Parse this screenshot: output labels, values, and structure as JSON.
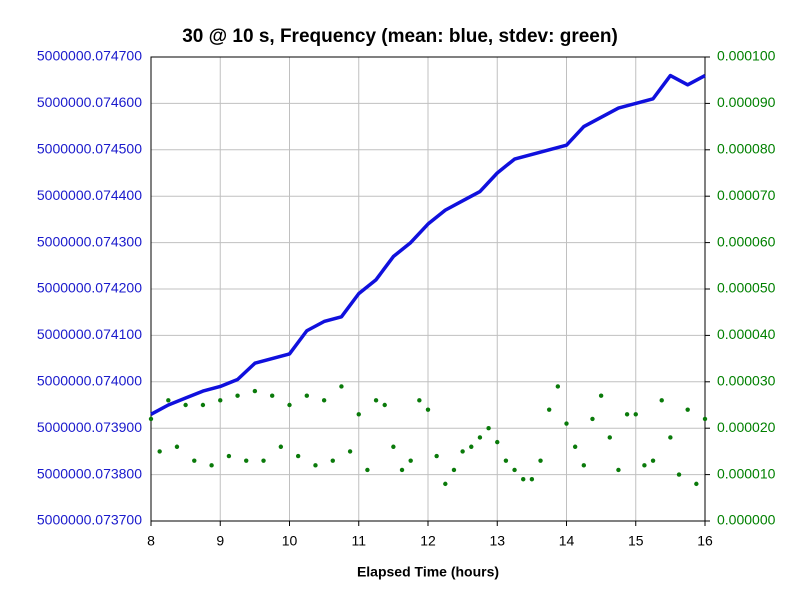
{
  "chart_data": {
    "type": "line",
    "title": "30 @ 10 s, Frequency (mean: blue, stdev: green)",
    "x_label": "Elapsed Time (hours)",
    "xlim": [
      8,
      16
    ],
    "xticks": [
      8,
      9,
      10,
      11,
      12,
      13,
      14,
      15,
      16
    ],
    "ylim": [
      5000000.0737,
      5000000.0747
    ],
    "yticks": [
      {
        "value": 5000000.0737,
        "label": "5000000.073700"
      },
      {
        "value": 5000000.0738,
        "label": "5000000.073800"
      },
      {
        "value": 5000000.0739,
        "label": "5000000.073900"
      },
      {
        "value": 5000000.074,
        "label": "5000000.074000"
      },
      {
        "value": 5000000.0741,
        "label": "5000000.074100"
      },
      {
        "value": 5000000.0742,
        "label": "5000000.074200"
      },
      {
        "value": 5000000.0743,
        "label": "5000000.074300"
      },
      {
        "value": 5000000.0744,
        "label": "5000000.074400"
      },
      {
        "value": 5000000.0745,
        "label": "5000000.074500"
      },
      {
        "value": 5000000.0746,
        "label": "5000000.074600"
      },
      {
        "value": 5000000.0747,
        "label": "5000000.074700"
      }
    ],
    "y2lim": [
      0,
      0.0001
    ],
    "y2ticks": [
      {
        "value": 0,
        "label": "0.000000"
      },
      {
        "value": 1e-05,
        "label": "0.000010"
      },
      {
        "value": 2e-05,
        "label": "0.000020"
      },
      {
        "value": 3e-05,
        "label": "0.000030"
      },
      {
        "value": 4e-05,
        "label": "0.000040"
      },
      {
        "value": 5e-05,
        "label": "0.000050"
      },
      {
        "value": 6e-05,
        "label": "0.000060"
      },
      {
        "value": 7e-05,
        "label": "0.000070"
      },
      {
        "value": 8e-05,
        "label": "0.000080"
      },
      {
        "value": 9e-05,
        "label": "0.000090"
      },
      {
        "value": 0.0001,
        "label": "0.000100"
      }
    ],
    "grid": true,
    "y_color": "#1a1acc",
    "y2_color": "#008000",
    "series": [
      {
        "color": "#1010dd",
        "style": "line",
        "x": [
          8,
          8.25,
          8.5,
          8.75,
          9,
          9.25,
          9.5,
          9.75,
          10,
          10.25,
          10.5,
          10.75,
          11,
          11.25,
          11.5,
          11.75,
          12,
          12.25,
          12.5,
          12.75,
          13,
          13.25,
          13.5,
          13.75,
          14,
          14.25,
          14.5,
          14.75,
          15,
          15.25,
          15.5,
          15.75,
          16
        ],
        "values": [
          5000000.07393,
          5000000.07395,
          5000000.073965,
          5000000.07398,
          5000000.07399,
          5000000.074005,
          5000000.07404,
          5000000.07405,
          5000000.07406,
          5000000.07411,
          5000000.07413,
          5000000.07414,
          5000000.07419,
          5000000.07422,
          5000000.07427,
          5000000.0743,
          5000000.07434,
          5000000.07437,
          5000000.07439,
          5000000.07441,
          5000000.07445,
          5000000.07448,
          5000000.07449,
          5000000.0745,
          5000000.07451,
          5000000.07455,
          5000000.07457,
          5000000.07459,
          5000000.0746,
          5000000.07461,
          5000000.07466,
          5000000.07464,
          5000000.07466
        ]
      },
      {
        "color": "#0a7a0a",
        "style": "dots",
        "axis": "y2",
        "x": [
          8,
          8.125,
          8.25,
          8.375,
          8.5,
          8.625,
          8.75,
          8.875,
          9,
          9.125,
          9.25,
          9.375,
          9.5,
          9.625,
          9.75,
          9.875,
          10,
          10.125,
          10.25,
          10.375,
          10.5,
          10.625,
          10.75,
          10.875,
          11,
          11.125,
          11.25,
          11.375,
          11.5,
          11.625,
          11.75,
          11.875,
          12,
          12.125,
          12.25,
          12.375,
          12.5,
          12.625,
          12.75,
          12.875,
          13,
          13.125,
          13.25,
          13.375,
          13.5,
          13.625,
          13.75,
          13.875,
          14,
          14.125,
          14.25,
          14.375,
          14.5,
          14.625,
          14.75,
          14.875,
          15,
          15.125,
          15.25,
          15.375,
          15.5,
          15.625,
          15.75,
          15.875,
          16
        ],
        "values": [
          2.2e-05,
          1.5e-05,
          2.6e-05,
          1.6e-05,
          2.5e-05,
          1.3e-05,
          2.5e-05,
          1.2e-05,
          2.6e-05,
          1.4e-05,
          2.7e-05,
          1.3e-05,
          2.8e-05,
          1.3e-05,
          2.7e-05,
          1.6e-05,
          2.5e-05,
          1.4e-05,
          2.7e-05,
          1.2e-05,
          2.6e-05,
          1.3e-05,
          2.9e-05,
          1.5e-05,
          2.3e-05,
          1.1e-05,
          2.6e-05,
          2.5e-05,
          1.6e-05,
          1.1e-05,
          1.3e-05,
          2.6e-05,
          2.4e-05,
          1.4e-05,
          8e-06,
          1.1e-05,
          1.5e-05,
          1.6e-05,
          1.8e-05,
          2e-05,
          1.7e-05,
          1.3e-05,
          1.1e-05,
          9e-06,
          9e-06,
          1.3e-05,
          2.4e-05,
          2.9e-05,
          2.1e-05,
          1.6e-05,
          1.2e-05,
          2.2e-05,
          2.7e-05,
          1.8e-05,
          1.1e-05,
          2.3e-05,
          2.3e-05,
          1.2e-05,
          1.3e-05,
          2.6e-05,
          1.8e-05,
          1e-05,
          2.4e-05,
          8e-06,
          2.2e-05
        ]
      }
    ]
  }
}
